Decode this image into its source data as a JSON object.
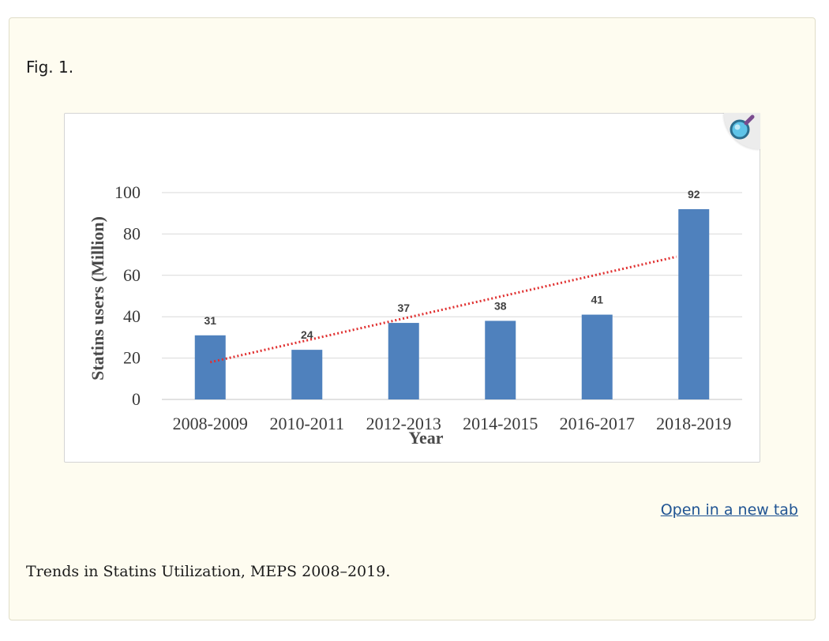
{
  "figure": {
    "label": "Fig. 1.",
    "open_link_label": "Open in a new tab",
    "caption": "Trends in Statins Utilization, MEPS 2008–2019.",
    "zoom_icon": "magnifier-icon"
  },
  "colors": {
    "panel_bg": "#fefcf0",
    "bar": "#4f81bd",
    "trendline": "#e03030",
    "gridline": "#d9d9d9",
    "link": "#205493"
  },
  "chart_data": {
    "type": "bar",
    "title": "",
    "xlabel": "Year",
    "ylabel": "Statins users  (Million)",
    "categories": [
      "2008-2009",
      "2010-2011",
      "2012-2013",
      "2014-2015",
      "2016-2017",
      "2018-2019"
    ],
    "values": [
      31,
      24,
      37,
      38,
      41,
      92
    ],
    "data_labels": [
      "31",
      "24",
      "37",
      "38",
      "41",
      "92"
    ],
    "ylim": [
      0,
      100
    ],
    "yticks": [
      0,
      20,
      40,
      60,
      80,
      100
    ],
    "grid": true,
    "legend": "none",
    "trendline": {
      "type": "linear",
      "style": "dotted",
      "start_value": 18,
      "end_value": 69
    }
  }
}
